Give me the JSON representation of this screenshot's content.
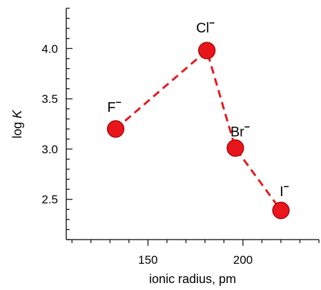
{
  "chart_data": {
    "type": "scatter",
    "xlabel": "ionic radius, pm",
    "ylabel_main": "log ",
    "ylabel_italic": "K",
    "xlim": [
      107,
      240
    ],
    "ylim": [
      2.1,
      4.4
    ],
    "xticks": [
      150,
      200
    ],
    "xtick_labels": [
      "150",
      "200"
    ],
    "yticks": [
      2.5,
      3.0,
      3.5,
      4.0
    ],
    "ytick_labels": [
      "2.5",
      "3.0",
      "3.5",
      "4.0"
    ],
    "grid": false,
    "series": [
      {
        "line_style": "dashed",
        "points": [
          {
            "label": "F",
            "x": 133,
            "y": 3.2
          },
          {
            "label": "Cl",
            "x": 181,
            "y": 3.98
          },
          {
            "label": "Br",
            "x": 196,
            "y": 3.01
          },
          {
            "label": "I",
            "x": 220,
            "y": 2.39
          }
        ]
      }
    ],
    "colors": {
      "marker": "#e8161b",
      "line": "#e8161b",
      "marker_edge": "#9a0000"
    }
  }
}
